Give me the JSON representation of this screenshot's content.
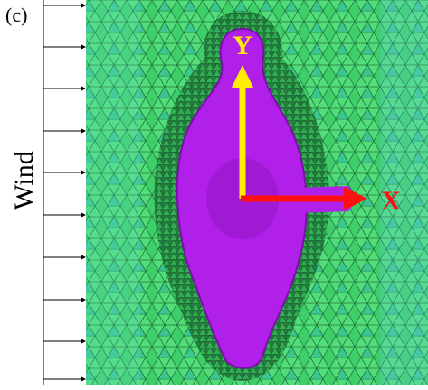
{
  "panel_label": "(c)",
  "wind_label": "Wind",
  "axes": {
    "y": "Y",
    "x": "X"
  }
}
